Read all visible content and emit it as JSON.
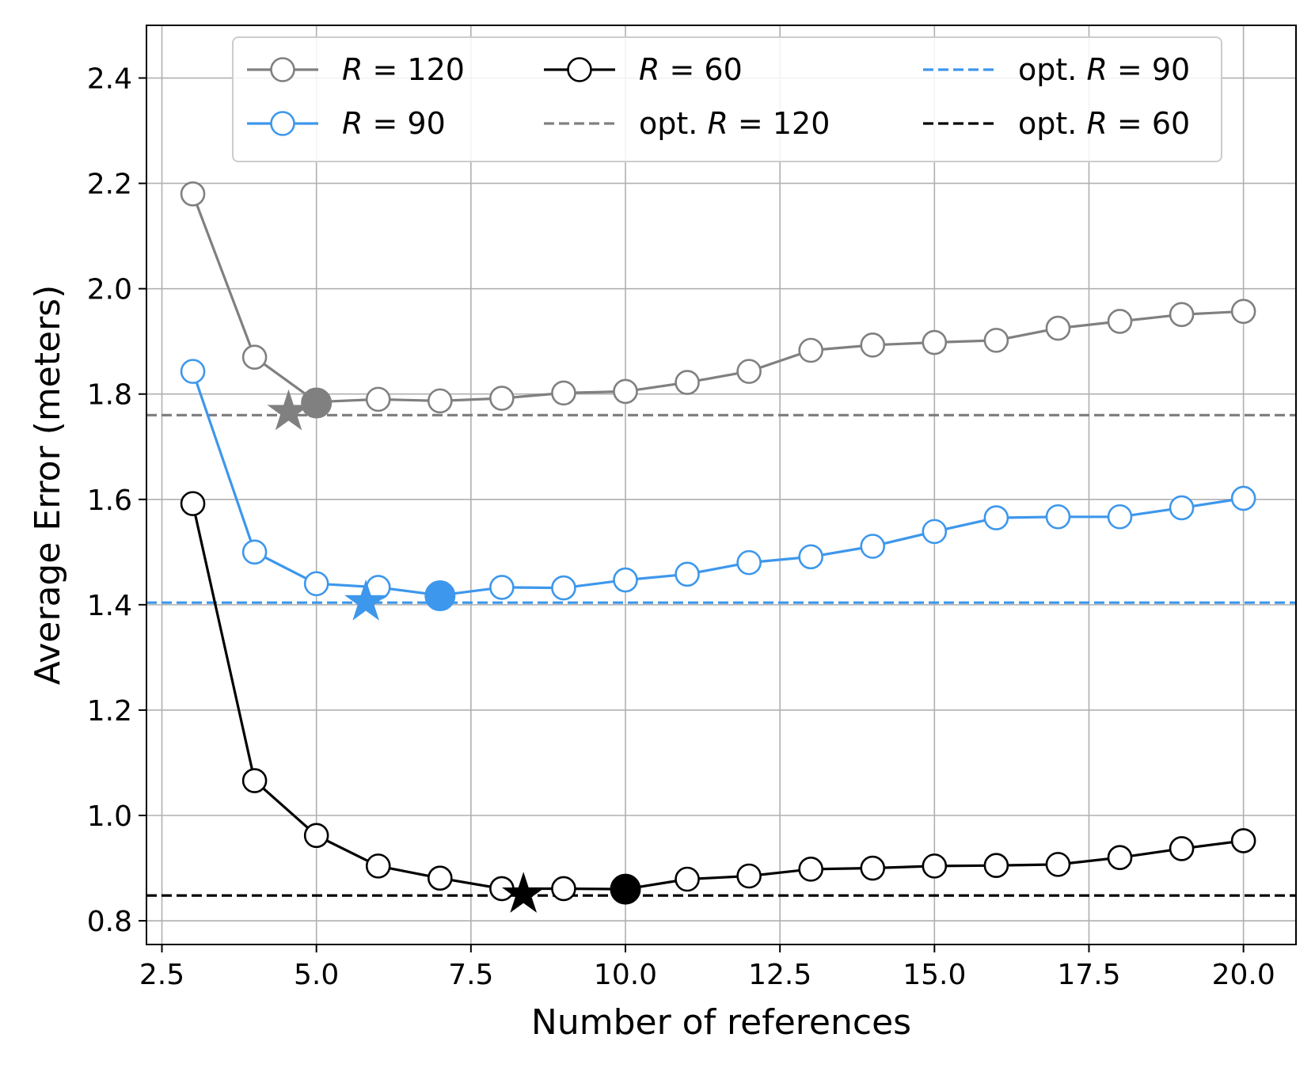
{
  "chart_data": {
    "type": "line",
    "xlabel": "Number of references",
    "ylabel": "Average Error (meters)",
    "xlim": [
      2.25,
      20.85
    ],
    "ylim": [
      0.755,
      2.5
    ],
    "xticks": [
      2.5,
      5.0,
      7.5,
      10.0,
      12.5,
      15.0,
      17.5,
      20.0
    ],
    "xtick_labels": [
      "2.5",
      "5.0",
      "7.5",
      "10.0",
      "12.5",
      "15.0",
      "17.5",
      "20.0"
    ],
    "yticks": [
      0.8,
      1.0,
      1.2,
      1.4,
      1.6,
      1.8,
      2.0,
      2.2,
      2.4
    ],
    "ytick_labels": [
      "0.8",
      "1.0",
      "1.2",
      "1.4",
      "1.6",
      "1.8",
      "2.0",
      "2.2",
      "2.4"
    ],
    "grid": true,
    "legend_position": "top",
    "x": [
      3,
      4,
      5,
      6,
      7,
      8,
      9,
      10,
      11,
      12,
      13,
      14,
      15,
      16,
      17,
      18,
      19,
      20
    ],
    "series": [
      {
        "name_prefix": "R",
        "name_suffix": " = 120",
        "color": "#808080",
        "values": [
          2.18,
          1.87,
          1.785,
          1.79,
          1.787,
          1.792,
          1.802,
          1.805,
          1.822,
          1.843,
          1.883,
          1.893,
          1.898,
          1.902,
          1.925,
          1.938,
          1.951,
          1.957
        ],
        "min_point": {
          "x": 5,
          "y": 1.783
        },
        "star": {
          "x": 4.55,
          "y": 1.766
        },
        "opt_value": 1.76,
        "opt_prefix": "opt. ",
        "opt_suffix": " = 120"
      },
      {
        "name_prefix": "R",
        "name_suffix": " = 90",
        "color": "#3d97ec",
        "values": [
          1.843,
          1.5,
          1.44,
          1.433,
          1.418,
          1.433,
          1.432,
          1.447,
          1.458,
          1.48,
          1.491,
          1.511,
          1.539,
          1.565,
          1.567,
          1.567,
          1.584,
          1.602
        ],
        "min_point": {
          "x": 7,
          "y": 1.417
        },
        "star": {
          "x": 5.8,
          "y": 1.405
        },
        "opt_value": 1.404,
        "opt_prefix": "opt. ",
        "opt_suffix": " = 90"
      },
      {
        "name_prefix": "R",
        "name_suffix": " = 60",
        "color": "#000000",
        "values": [
          1.592,
          1.066,
          0.962,
          0.904,
          0.881,
          0.861,
          0.861,
          0.86,
          0.879,
          0.885,
          0.898,
          0.9,
          0.904,
          0.905,
          0.907,
          0.92,
          0.937,
          0.952
        ],
        "min_point": {
          "x": 10,
          "y": 0.86
        },
        "star": {
          "x": 8.35,
          "y": 0.85
        },
        "opt_value": 0.848,
        "opt_prefix": "opt. ",
        "opt_suffix": " = 60"
      }
    ]
  }
}
